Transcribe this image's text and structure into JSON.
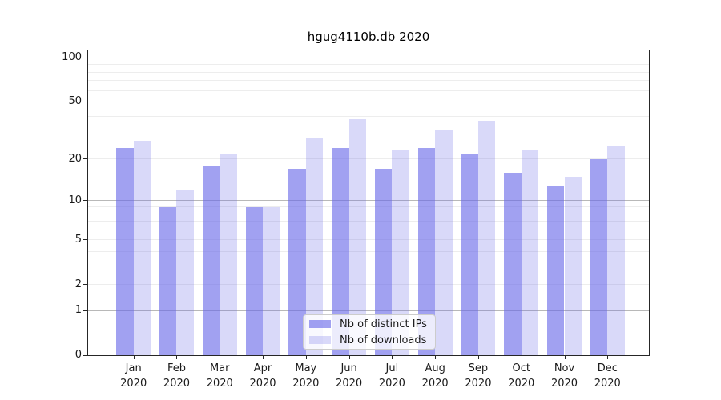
{
  "chart_data": {
    "type": "bar",
    "title": "hgug4110b.db 2020",
    "year_label": "2020",
    "categories": [
      "Jan",
      "Feb",
      "Mar",
      "Apr",
      "May",
      "Jun",
      "Jul",
      "Aug",
      "Sep",
      "Oct",
      "Nov",
      "Dec"
    ],
    "series": [
      {
        "name": "Nb of distinct IPs",
        "color": "#a8a8f0",
        "fill": "rgba(104,104,232,0.62)",
        "values": [
          24,
          9,
          18,
          9,
          17,
          24,
          17,
          24,
          22,
          16,
          13,
          20
        ]
      },
      {
        "name": "Nb of downloads",
        "color": "#d9d9f7",
        "fill": "rgba(104,104,232,0.25)",
        "values": [
          27,
          12,
          22,
          9,
          28,
          38,
          23,
          32,
          37,
          23,
          15,
          25
        ]
      }
    ],
    "xlabel": "",
    "ylabel": "",
    "yscale": "log1p",
    "ylim": [
      0,
      112
    ],
    "yticks": [
      0,
      1,
      2,
      5,
      10,
      20,
      50,
      100
    ],
    "grid": true,
    "gridlines_minor": [
      2,
      3,
      4,
      5,
      6,
      7,
      8,
      9,
      20,
      30,
      40,
      50,
      60,
      70,
      80,
      90
    ],
    "gridlines_major": [
      1,
      10,
      100
    ],
    "legend_position": "lower center"
  },
  "colors": {
    "grid_minor": "#ededed",
    "grid_major": "#b8b8b8",
    "axis": "#262626",
    "text": "#1a1a1a",
    "legend_border": "#cccccc"
  }
}
